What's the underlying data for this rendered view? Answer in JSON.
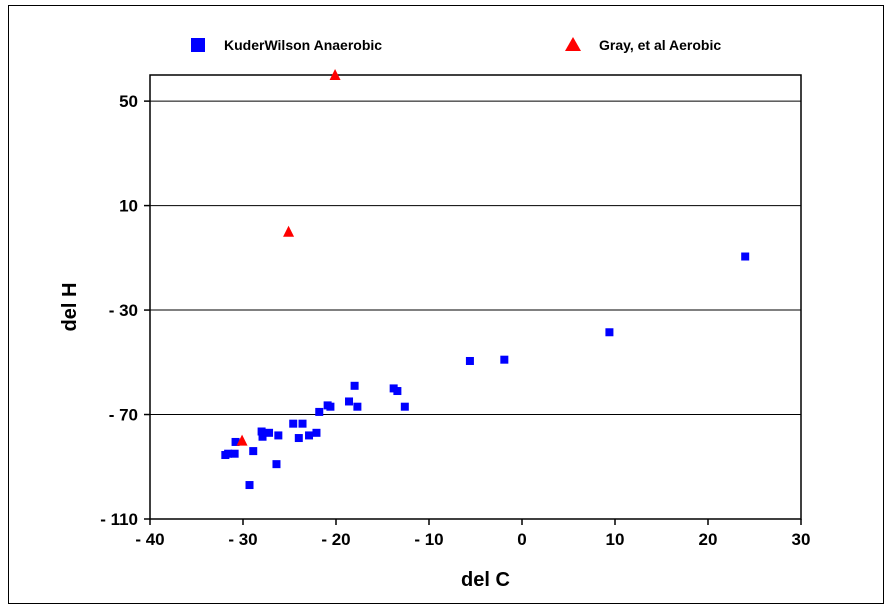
{
  "chart_data": {
    "type": "scatter",
    "xlabel": "del  C",
    "ylabel": "del  H",
    "xlim": [
      -40,
      30
    ],
    "ylim": [
      -110,
      60
    ],
    "x_ticks": [
      -40,
      -30,
      -20,
      -10,
      0,
      10,
      20,
      30
    ],
    "x_tick_labels": [
      "- 40",
      "- 30",
      "- 20",
      "- 10",
      "0",
      "10",
      "20",
      "30"
    ],
    "y_ticks": [
      50,
      10,
      -30,
      -70,
      -110
    ],
    "y_tick_labels": [
      "50",
      "10",
      "- 30",
      "- 70",
      "- 110"
    ],
    "grid": "horizontal",
    "legend_position": "top",
    "series": [
      {
        "name": "KuderWilson Anaerobic",
        "marker": "square",
        "color": "#0000FF",
        "points": [
          [
            -31.9,
            -85.5
          ],
          [
            -31.6,
            -85
          ],
          [
            -30.9,
            -85
          ],
          [
            -30.8,
            -80.5
          ],
          [
            -29.3,
            -97
          ],
          [
            -28.9,
            -84
          ],
          [
            -28.0,
            -76.5
          ],
          [
            -27.9,
            -78.5
          ],
          [
            -27.2,
            -77
          ],
          [
            -26.4,
            -89
          ],
          [
            -26.2,
            -78
          ],
          [
            -24.6,
            -73.5
          ],
          [
            -24.0,
            -79
          ],
          [
            -23.6,
            -73.5
          ],
          [
            -22.9,
            -78
          ],
          [
            -22.1,
            -77
          ],
          [
            -21.8,
            -69
          ],
          [
            -20.9,
            -66.5
          ],
          [
            -20.6,
            -67
          ],
          [
            -18.6,
            -65
          ],
          [
            -18.0,
            -59
          ],
          [
            -17.7,
            -67
          ],
          [
            -13.8,
            -60
          ],
          [
            -13.4,
            -61
          ],
          [
            -12.6,
            -67
          ],
          [
            -5.6,
            -49.5
          ],
          [
            -1.9,
            -49
          ],
          [
            9.4,
            -38.5
          ],
          [
            24.0,
            -9.5
          ]
        ]
      },
      {
        "name": "Gray, et al Aerobic",
        "marker": "triangle",
        "color": "#FF0000",
        "points": [
          [
            -30.1,
            -80
          ],
          [
            -25.1,
            0
          ],
          [
            -20.1,
            60
          ]
        ]
      }
    ]
  }
}
